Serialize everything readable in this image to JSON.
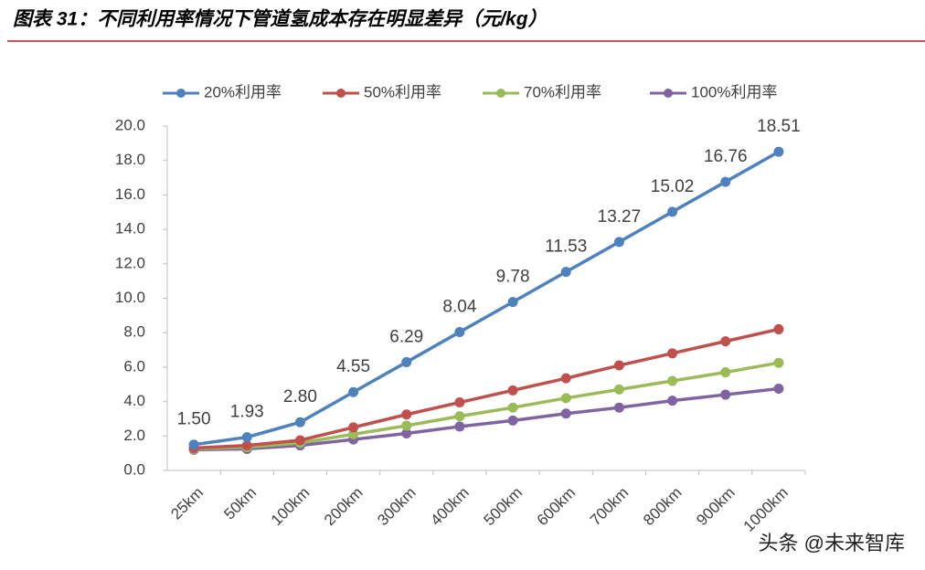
{
  "chart_data": {
    "type": "line",
    "title": "图表 31：不同利用率情况下管道氢成本存在明显差异（元/kg）",
    "categories": [
      "25km",
      "50km",
      "100km",
      "200km",
      "300km",
      "400km",
      "500km",
      "600km",
      "700km",
      "800km",
      "900km",
      "1000km"
    ],
    "series": [
      {
        "name": "20%利用率",
        "color": "#4f81bd",
        "values": [
          1.5,
          1.93,
          2.8,
          4.55,
          6.29,
          8.04,
          9.78,
          11.53,
          13.27,
          15.02,
          16.76,
          18.51
        ],
        "value_labels": [
          "1.50",
          "1.93",
          "2.80",
          "4.55",
          "6.29",
          "8.04",
          "9.78",
          "11.53",
          "13.27",
          "15.02",
          "16.76",
          "18.51"
        ]
      },
      {
        "name": "50%利用率",
        "color": "#c0504d",
        "values": [
          1.3,
          1.45,
          1.75,
          2.5,
          3.25,
          3.95,
          4.65,
          5.35,
          6.1,
          6.8,
          7.5,
          8.2
        ]
      },
      {
        "name": "70%利用率",
        "color": "#9bbb59",
        "values": [
          1.25,
          1.35,
          1.6,
          2.1,
          2.6,
          3.15,
          3.65,
          4.2,
          4.7,
          5.2,
          5.7,
          6.25
        ]
      },
      {
        "name": "100%利用率",
        "color": "#8064a2",
        "values": [
          1.2,
          1.25,
          1.45,
          1.8,
          2.15,
          2.55,
          2.9,
          3.3,
          3.65,
          4.05,
          4.4,
          4.75
        ]
      }
    ],
    "ylim": [
      0,
      20
    ],
    "yticks": [
      {
        "value": 0,
        "label": "0.0"
      },
      {
        "value": 2,
        "label": "2.0"
      },
      {
        "value": 4,
        "label": "4.0"
      },
      {
        "value": 6,
        "label": "6.0"
      },
      {
        "value": 8,
        "label": "8.0"
      },
      {
        "value": 10,
        "label": "10.0"
      },
      {
        "value": 12,
        "label": "12.0"
      },
      {
        "value": 14,
        "label": "14.0"
      },
      {
        "value": 16,
        "label": "16.0"
      },
      {
        "value": 18,
        "label": "18.0"
      },
      {
        "value": 20,
        "label": "20.0"
      }
    ],
    "grid": false,
    "legend": "top"
  },
  "watermark": "头条 @未来智库"
}
